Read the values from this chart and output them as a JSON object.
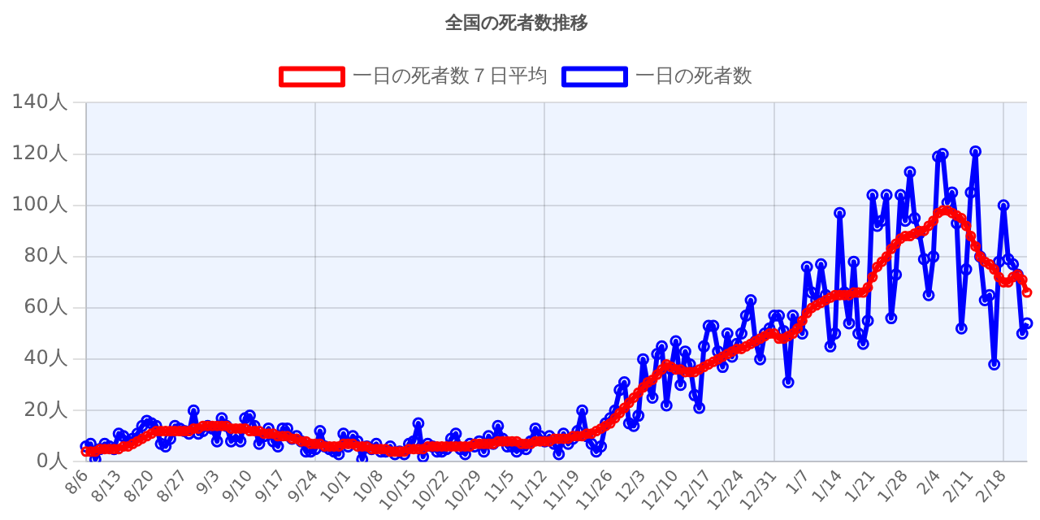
{
  "chart_data": {
    "type": "line",
    "title": "全国の死者数推移",
    "categories": [
      "8/6",
      null,
      null,
      null,
      null,
      null,
      null,
      "8/13",
      null,
      null,
      null,
      null,
      null,
      null,
      "8/20",
      null,
      null,
      null,
      null,
      null,
      null,
      "8/27",
      null,
      null,
      null,
      null,
      null,
      null,
      "9/3",
      null,
      null,
      null,
      null,
      null,
      null,
      "9/10",
      null,
      null,
      null,
      null,
      null,
      null,
      "9/17",
      null,
      null,
      null,
      null,
      null,
      null,
      "9/24",
      null,
      null,
      null,
      null,
      null,
      null,
      "10/1",
      null,
      null,
      null,
      null,
      null,
      null,
      "10/8",
      null,
      null,
      null,
      null,
      null,
      null,
      "10/15",
      null,
      null,
      null,
      null,
      null,
      null,
      "10/22",
      null,
      null,
      null,
      null,
      null,
      null,
      "10/29",
      null,
      null,
      null,
      null,
      null,
      null,
      "11/5",
      null,
      null,
      null,
      null,
      null,
      null,
      "11/12",
      null,
      null,
      null,
      null,
      null,
      null,
      "11/19",
      null,
      null,
      null,
      null,
      null,
      null,
      "11/26",
      null,
      null,
      null,
      null,
      null,
      null,
      "12/3",
      null,
      null,
      null,
      null,
      null,
      null,
      "12/10",
      null,
      null,
      null,
      null,
      null,
      null,
      "12/17",
      null,
      null,
      null,
      null,
      null,
      null,
      "12/24",
      null,
      null,
      null,
      null,
      null,
      null,
      "12/31",
      null,
      null,
      null,
      null,
      null,
      null,
      "1/7",
      null,
      null,
      null,
      null,
      null,
      null,
      "1/14",
      null,
      null,
      null,
      null,
      null,
      null,
      "1/21",
      null,
      null,
      null,
      null,
      null,
      null,
      "1/28",
      null,
      null,
      null,
      null,
      null,
      null,
      "2/4",
      null,
      null,
      null,
      null,
      null,
      null,
      "2/11",
      null,
      null,
      null,
      null,
      null,
      null,
      "2/18",
      null,
      null,
      null,
      null,
      null
    ],
    "series": [
      {
        "name": "一日の死者数７日平均",
        "color": "#ff0000",
        "values": [
          4,
          4,
          4,
          5,
          5,
          5,
          5,
          5,
          6,
          6,
          7,
          8,
          9,
          10,
          11,
          12,
          12,
          12,
          12,
          12,
          12,
          12,
          12,
          13,
          13,
          14,
          14,
          14,
          14,
          14,
          14,
          13,
          13,
          13,
          13,
          12,
          12,
          12,
          11,
          11,
          11,
          10,
          10,
          10,
          9,
          9,
          8,
          8,
          7,
          7,
          7,
          6,
          6,
          6,
          6,
          7,
          7,
          7,
          6,
          6,
          6,
          5,
          5,
          5,
          5,
          4,
          4,
          4,
          4,
          5,
          5,
          5,
          5,
          6,
          6,
          6,
          6,
          6,
          6,
          6,
          6,
          6,
          6,
          7,
          7,
          7,
          7,
          7,
          8,
          8,
          8,
          8,
          8,
          7,
          7,
          7,
          8,
          8,
          8,
          8,
          9,
          9,
          9,
          9,
          10,
          10,
          10,
          11,
          11,
          12,
          13,
          14,
          15,
          17,
          19,
          21,
          23,
          25,
          27,
          29,
          31,
          32,
          34,
          36,
          38,
          37,
          36,
          36,
          35,
          35,
          35,
          36,
          37,
          38,
          39,
          40,
          41,
          42,
          43,
          44,
          44,
          45,
          46,
          47,
          48,
          49,
          50,
          50,
          48,
          48,
          49,
          50,
          52,
          55,
          58,
          60,
          61,
          62,
          63,
          64,
          65,
          65,
          65,
          65,
          66,
          66,
          66,
          68,
          72,
          76,
          78,
          80,
          83,
          85,
          87,
          88,
          88,
          89,
          90,
          90,
          92,
          94,
          97,
          98,
          98,
          97,
          96,
          95,
          92,
          88,
          84,
          80,
          78,
          77,
          75,
          72,
          70,
          70,
          72,
          73,
          71,
          66
        ]
      },
      {
        "name": "一日の死者数",
        "color": "#0000ff",
        "values": [
          6,
          7,
          1,
          5,
          7,
          6,
          5,
          11,
          10,
          8,
          9,
          11,
          14,
          16,
          15,
          14,
          7,
          6,
          9,
          14,
          13,
          12,
          11,
          20,
          11,
          12,
          14,
          13,
          8,
          17,
          14,
          8,
          10,
          8,
          17,
          18,
          14,
          7,
          10,
          13,
          8,
          6,
          13,
          13,
          9,
          10,
          8,
          4,
          4,
          5,
          12,
          6,
          5,
          4,
          3,
          11,
          6,
          10,
          8,
          1,
          6,
          5,
          7,
          4,
          4,
          6,
          3,
          4,
          3,
          7,
          8,
          15,
          2,
          7,
          6,
          4,
          4,
          5,
          9,
          11,
          5,
          3,
          7,
          6,
          8,
          4,
          10,
          7,
          14,
          9,
          6,
          6,
          4,
          6,
          5,
          8,
          13,
          10,
          8,
          10,
          7,
          3,
          11,
          7,
          9,
          12,
          20,
          10,
          7,
          4,
          6,
          15,
          17,
          20,
          28,
          31,
          15,
          14,
          18,
          40,
          30,
          25,
          42,
          45,
          22,
          36,
          47,
          30,
          43,
          38,
          26,
          21,
          45,
          53,
          53,
          43,
          37,
          50,
          41,
          46,
          50,
          57,
          63,
          47,
          40,
          50,
          52,
          57,
          57,
          51,
          31,
          57,
          53,
          50,
          76,
          66,
          63,
          77,
          65,
          45,
          50,
          97,
          66,
          54,
          78,
          50,
          46,
          55,
          104,
          92,
          94,
          104,
          56,
          73,
          104,
          94,
          113,
          95,
          89,
          79,
          65,
          80,
          119,
          120,
          101,
          105,
          93,
          52,
          75,
          105,
          121,
          80,
          63,
          65,
          38,
          78,
          100,
          79,
          77,
          73,
          50,
          54
        ]
      }
    ],
    "ylim": [
      0,
      140
    ],
    "yticks": [
      {
        "value": 0,
        "label": "0人"
      },
      {
        "value": 20,
        "label": "20人"
      },
      {
        "value": 40,
        "label": "40人"
      },
      {
        "value": 60,
        "label": "60人"
      },
      {
        "value": 80,
        "label": "80人"
      },
      {
        "value": 100,
        "label": "100人"
      },
      {
        "value": 120,
        "label": "120人"
      },
      {
        "value": 140,
        "label": "140人"
      }
    ],
    "grid": true,
    "legend": "top",
    "marker": "circle"
  }
}
